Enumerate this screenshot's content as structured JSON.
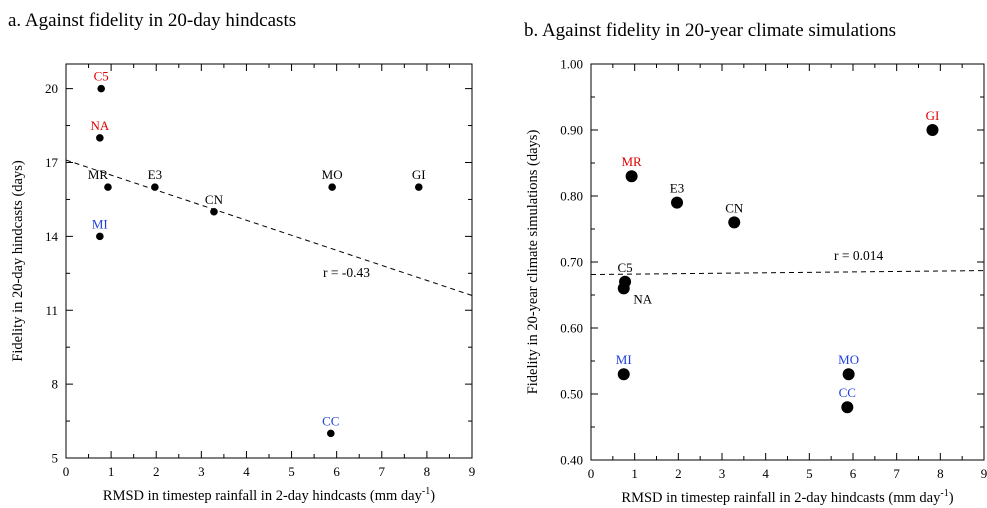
{
  "chart_data": [
    {
      "type": "scatter",
      "title": "a. Against fidelity in 20-day hindcasts",
      "xlabel": "RMSD in timestep rainfall in 2-day hindcasts (mm day",
      "xlabel_sup": "-1",
      "xlabel_end": ")",
      "ylabel": "Fidelity in 20-day hindcasts (days)",
      "xlim": [
        0,
        9
      ],
      "ylim": [
        5,
        21
      ],
      "xticks": [
        "0",
        "1",
        "2",
        "3",
        "4",
        "5",
        "6",
        "7",
        "8",
        "9"
      ],
      "yticks": [
        "5",
        "8",
        "11",
        "14",
        "17",
        "20"
      ],
      "grid": false,
      "points": [
        {
          "label": "C5",
          "x": 0.78,
          "y": 20,
          "color": "#e00000"
        },
        {
          "label": "NA",
          "x": 0.75,
          "y": 18,
          "color": "#e00000"
        },
        {
          "label": "MR",
          "x": 0.93,
          "y": 16,
          "color": "#000000"
        },
        {
          "label": "E3",
          "x": 1.97,
          "y": 16,
          "color": "#000000"
        },
        {
          "label": "CN",
          "x": 3.28,
          "y": 15,
          "color": "#000000"
        },
        {
          "label": "MO",
          "x": 5.9,
          "y": 16,
          "color": "#000000"
        },
        {
          "label": "GI",
          "x": 7.82,
          "y": 16,
          "color": "#000000"
        },
        {
          "label": "MI",
          "x": 0.75,
          "y": 14,
          "color": "#1f3fe0"
        },
        {
          "label": "CC",
          "x": 5.87,
          "y": 6,
          "color": "#1f3fe0"
        }
      ],
      "regression": {
        "label": "r = -0.43",
        "x": [
          0,
          9
        ],
        "y": [
          17.1,
          11.6
        ]
      }
    },
    {
      "type": "scatter",
      "title": "b. Against fidelity in 20-year climate simulations",
      "xlabel": "RMSD in timestep rainfall in 2-day hindcasts (mm day",
      "xlabel_sup": "-1",
      "xlabel_end": ")",
      "ylabel": "Fidelity in 20-year climate simulations (days)",
      "xlim": [
        0,
        9
      ],
      "ylim": [
        0.4,
        1.0
      ],
      "xticks": [
        "0",
        "1",
        "2",
        "3",
        "4",
        "5",
        "6",
        "7",
        "8",
        "9"
      ],
      "yticks": [
        "0.40",
        "0.50",
        "0.60",
        "0.70",
        "0.80",
        "0.90",
        "1.00"
      ],
      "grid": false,
      "points": [
        {
          "label": "GI",
          "x": 7.82,
          "y": 0.9,
          "color": "#e00000"
        },
        {
          "label": "MR",
          "x": 0.93,
          "y": 0.83,
          "color": "#e00000"
        },
        {
          "label": "E3",
          "x": 1.97,
          "y": 0.79,
          "color": "#000000"
        },
        {
          "label": "CN",
          "x": 3.28,
          "y": 0.76,
          "color": "#000000"
        },
        {
          "label": "C5",
          "x": 0.78,
          "y": 0.67,
          "color": "#000000"
        },
        {
          "label": "NA",
          "x": 0.75,
          "y": 0.66,
          "color": "#000000"
        },
        {
          "label": "MI",
          "x": 0.75,
          "y": 0.53,
          "color": "#1f3fe0"
        },
        {
          "label": "MO",
          "x": 5.9,
          "y": 0.53,
          "color": "#1f3fe0"
        },
        {
          "label": "CC",
          "x": 5.87,
          "y": 0.48,
          "color": "#1f3fe0"
        }
      ],
      "regression": {
        "label": "r = 0.014",
        "x": [
          0,
          9
        ],
        "y": [
          0.681,
          0.687
        ]
      }
    }
  ]
}
